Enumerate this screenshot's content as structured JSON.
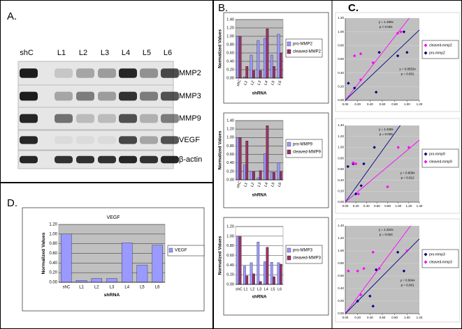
{
  "figure": {
    "panel_labels": [
      "A.",
      "B.",
      "C.",
      "D."
    ],
    "blot": {
      "lanes": [
        "shC",
        "L1",
        "L2",
        "L3",
        "L4",
        "L5",
        "L6"
      ],
      "proteins": [
        "MMP2",
        "MMP3",
        "MMP9",
        "VEGF",
        "β-actin"
      ]
    }
  },
  "chart_data": [
    {
      "type": "bar",
      "y_label": "Normalized Values",
      "x_label": "shRNA",
      "categories": [
        "shC",
        "L1",
        "L2",
        "L3",
        "L4",
        "L5",
        "L6"
      ],
      "series": [
        {
          "name": "pro-MMP2",
          "color": "#9999ff",
          "values": [
            1.0,
            0.03,
            0.55,
            0.9,
            0.95,
            0.55,
            1.05
          ]
        },
        {
          "name": "cleaved-MMP2",
          "color": "#993366",
          "values": [
            1.0,
            0.28,
            0.18,
            0.18,
            1.18,
            0.28,
            0.6
          ]
        }
      ],
      "ylim": [
        0,
        1.4
      ],
      "yticks": [
        {
          "value": 0,
          "label": "0.00"
        },
        {
          "value": 0.2,
          "label": "0.20"
        },
        {
          "value": 0.4,
          "label": "0.40"
        },
        {
          "value": 0.6,
          "label": "0.60"
        },
        {
          "value": 0.8,
          "label": "0.80"
        },
        {
          "value": 1.0,
          "label": "1.00"
        },
        {
          "value": 1.2,
          "label": "1.20"
        },
        {
          "value": 1.4,
          "label": "1.40"
        }
      ],
      "grid": true,
      "plot_background": "#c0c0c0",
      "legend": "right"
    },
    {
      "type": "bar",
      "y_label": "Normalized Values",
      "x_label": "shRNA",
      "categories": [
        "shC",
        "L1",
        "L2",
        "L3",
        "L4",
        "L5",
        "L6"
      ],
      "series": [
        {
          "name": "pro-MMP9",
          "color": "#9999ff",
          "values": [
            1.0,
            0.35,
            0.2,
            0.05,
            0.62,
            0.18,
            0.4
          ]
        },
        {
          "name": "cleaved-MMP9",
          "color": "#993366",
          "values": [
            1.0,
            0.92,
            0.2,
            0.22,
            1.28,
            0.18,
            0.2
          ]
        }
      ],
      "ylim": [
        0,
        1.4
      ],
      "yticks": [
        {
          "value": 0,
          "label": "0.00"
        },
        {
          "value": 0.2,
          "label": "0.20"
        },
        {
          "value": 0.4,
          "label": "0.40"
        },
        {
          "value": 0.6,
          "label": "0.60"
        },
        {
          "value": 0.8,
          "label": "0.80"
        },
        {
          "value": 1.0,
          "label": "1.00"
        },
        {
          "value": 1.2,
          "label": "1.20"
        },
        {
          "value": 1.4,
          "label": "1.40"
        }
      ],
      "grid": true,
      "plot_background": "#c0c0c0",
      "legend": "right"
    },
    {
      "type": "bar",
      "y_label": "Normalized Values",
      "x_label": "shRNA",
      "categories": [
        "shC",
        "L1",
        "L2",
        "L3",
        "L4",
        "L5",
        "L6"
      ],
      "series": [
        {
          "name": "pro-MMP3",
          "color": "#9999ff",
          "values": [
            1.0,
            0.38,
            0.45,
            0.88,
            0.47,
            0.46,
            0.45
          ]
        },
        {
          "name": "cleaved-MMP3",
          "color": "#993366",
          "values": [
            1.0,
            0.18,
            0.22,
            0.06,
            0.77,
            0.16,
            0.42
          ]
        }
      ],
      "ylim": [
        0,
        1.2
      ],
      "yticks": [
        {
          "value": 0,
          "label": "0.00"
        },
        {
          "value": 0.2,
          "label": "0.20"
        },
        {
          "value": 0.4,
          "label": "0.40"
        },
        {
          "value": 0.6,
          "label": "0.60"
        },
        {
          "value": 0.8,
          "label": "0.80"
        },
        {
          "value": 1.0,
          "label": "1.00"
        },
        {
          "value": 1.2,
          "label": "1.20"
        }
      ],
      "grid": true,
      "plot_background": "#ffffff",
      "legend": "right"
    },
    {
      "type": "scatter",
      "series": [
        {
          "name": "cleaved-mmp2",
          "color": "#ff00ff",
          "x": [
            0.15,
            0.25,
            0.25,
            0.45,
            0.55,
            0.85,
            0.9
          ],
          "values": [
            0.65,
            0.68,
            0.3,
            0.55,
            0.7,
            0.98,
            1.0
          ]
        },
        {
          "name": "pro-mmp2",
          "color": "#000080",
          "x": [
            0.05,
            0.15,
            0.5,
            0.55,
            0.85,
            0.95,
            1.0
          ],
          "values": [
            0.25,
            0.18,
            0.12,
            0.7,
            0.65,
            1.0,
            0.7
          ]
        }
      ],
      "fit_lines": [
        {
          "slope": 1.159,
          "label": "y = 1.159x",
          "p": "p < 0.001",
          "color": "#ff00ff"
        },
        {
          "slope": 0.8553,
          "label": "y = 0.8553x",
          "p": "p = 0.001",
          "color": "#000080"
        }
      ],
      "xlim": [
        0,
        1.2
      ],
      "ylim": [
        0,
        1.2
      ],
      "xticks": [
        {
          "value": 0,
          "label": "0.00"
        },
        {
          "value": 0.2,
          "label": "0.20"
        },
        {
          "value": 0.4,
          "label": "0.40"
        },
        {
          "value": 0.6,
          "label": "0.60"
        },
        {
          "value": 0.8,
          "label": "0.80"
        },
        {
          "value": 1.0,
          "label": "1.00"
        },
        {
          "value": 1.2,
          "label": "1.20"
        }
      ],
      "yticks": [
        {
          "value": 0,
          "label": "0.00"
        },
        {
          "value": 0.2,
          "label": "0.20"
        },
        {
          "value": 0.4,
          "label": "0.40"
        },
        {
          "value": 0.6,
          "label": "0.60"
        },
        {
          "value": 0.8,
          "label": "0.80"
        },
        {
          "value": 1.0,
          "label": "1.00"
        },
        {
          "value": 1.2,
          "label": "1.20"
        }
      ],
      "grid": true,
      "plot_background": "#c0c0c0",
      "legend": "right"
    },
    {
      "type": "scatter",
      "series": [
        {
          "name": "pro-mmp9",
          "color": "#000080",
          "x": [
            0.05,
            0.15,
            0.2,
            0.3,
            0.35,
            0.55
          ],
          "values": [
            0.65,
            0.7,
            0.15,
            0.3,
            0.7,
            1.0
          ]
        },
        {
          "name": "cleaved-mmp9",
          "color": "#ff00ff",
          "x": [
            0.15,
            0.2,
            0.25,
            0.8,
            1.0,
            1.2
          ],
          "values": [
            0.72,
            0.7,
            0.15,
            0.28,
            1.0,
            1.0
          ]
        }
      ],
      "fit_lines": [
        {
          "slope": 1.348,
          "label": "y = 1.348x",
          "p": "p = 0.009",
          "color": "#000080"
        },
        {
          "slope": 0.809,
          "label": "y = 0.809x",
          "p": "p = 0.012",
          "color": "#ff00ff"
        }
      ],
      "xlim": [
        0,
        1.4
      ],
      "ylim": [
        0,
        1.4
      ],
      "xticks": [
        {
          "value": 0,
          "label": "0.00"
        },
        {
          "value": 0.2,
          "label": "0.20"
        },
        {
          "value": 0.4,
          "label": "0.40"
        },
        {
          "value": 0.6,
          "label": "0.60"
        },
        {
          "value": 0.8,
          "label": "0.80"
        },
        {
          "value": 1.0,
          "label": "1.00"
        },
        {
          "value": 1.2,
          "label": "1.20"
        },
        {
          "value": 1.4,
          "label": "1.40"
        }
      ],
      "yticks": [
        {
          "value": 0,
          "label": "0.00"
        },
        {
          "value": 0.2,
          "label": "0.20"
        },
        {
          "value": 0.4,
          "label": "0.40"
        },
        {
          "value": 0.6,
          "label": "0.60"
        },
        {
          "value": 0.8,
          "label": "0.80"
        },
        {
          "value": 1.0,
          "label": "1.00"
        },
        {
          "value": 1.2,
          "label": "1.20"
        },
        {
          "value": 1.4,
          "label": "1.40"
        }
      ],
      "grid": true,
      "plot_background": "#c0c0c0",
      "legend": "right"
    },
    {
      "type": "scatter",
      "series": [
        {
          "name": "pro-mmp3",
          "color": "#000080",
          "x": [
            0.2,
            0.4,
            0.45,
            0.5,
            0.85,
            0.95
          ],
          "values": [
            0.2,
            0.28,
            0.12,
            0.7,
            0.98,
            0.68
          ]
        },
        {
          "name": "cleaved-mmp3",
          "color": "#ff00ff",
          "x": [
            0.05,
            0.2,
            0.25,
            0.3,
            0.45,
            0.55,
            1.0
          ],
          "values": [
            0.68,
            0.68,
            0.3,
            0.72,
            0.98,
            0.72,
            1.0
          ]
        }
      ],
      "fit_lines": [
        {
          "slope": 1.324,
          "label": "y = 1.324x",
          "p": "p = 0.004",
          "color": "#ff00ff"
        },
        {
          "slope": 0.994,
          "label": "y = 0.994x",
          "p": "p = 0.001",
          "color": "#000080"
        }
      ],
      "xlim": [
        0,
        1.2
      ],
      "ylim": [
        0,
        1.4
      ],
      "xticks": [
        {
          "value": 0,
          "label": "0.00"
        },
        {
          "value": 0.2,
          "label": "0.20"
        },
        {
          "value": 0.4,
          "label": "0.40"
        },
        {
          "value": 0.6,
          "label": "0.60"
        },
        {
          "value": 0.8,
          "label": "0.80"
        },
        {
          "value": 1.0,
          "label": "1.00"
        },
        {
          "value": 1.2,
          "label": "1.20"
        }
      ],
      "yticks": [
        {
          "value": 0,
          "label": "0.00"
        },
        {
          "value": 0.2,
          "label": "0.20"
        },
        {
          "value": 0.4,
          "label": "0.40"
        },
        {
          "value": 0.6,
          "label": "0.60"
        },
        {
          "value": 0.8,
          "label": "0.80"
        },
        {
          "value": 1.0,
          "label": "1.00"
        },
        {
          "value": 1.2,
          "label": "1.20"
        },
        {
          "value": 1.4,
          "label": "1.40"
        }
      ],
      "grid": true,
      "plot_background": "#c0c0c0",
      "legend": "right"
    },
    {
      "type": "bar",
      "title": "VEGF",
      "y_label": "Normalized Values",
      "x_label": "shRNA",
      "categories": [
        "shC",
        "L1",
        "L2",
        "L3",
        "L4",
        "L5",
        "L6"
      ],
      "series": [
        {
          "name": "VEGF",
          "color": "#9999ff",
          "values": [
            1.0,
            0.04,
            0.08,
            0.08,
            0.82,
            0.36,
            0.77
          ]
        }
      ],
      "ylim": [
        0,
        1.2
      ],
      "yticks": [
        {
          "value": 0,
          "label": "0.00"
        },
        {
          "value": 0.2,
          "label": "0.20"
        },
        {
          "value": 0.4,
          "label": "0.40"
        },
        {
          "value": 0.6,
          "label": "0.60"
        },
        {
          "value": 0.8,
          "label": "0.80"
        },
        {
          "value": 1.0,
          "label": "1.00"
        },
        {
          "value": 1.2,
          "label": "1.20"
        }
      ],
      "grid": true,
      "plot_background": "#c0c0c0",
      "legend": "right"
    }
  ]
}
